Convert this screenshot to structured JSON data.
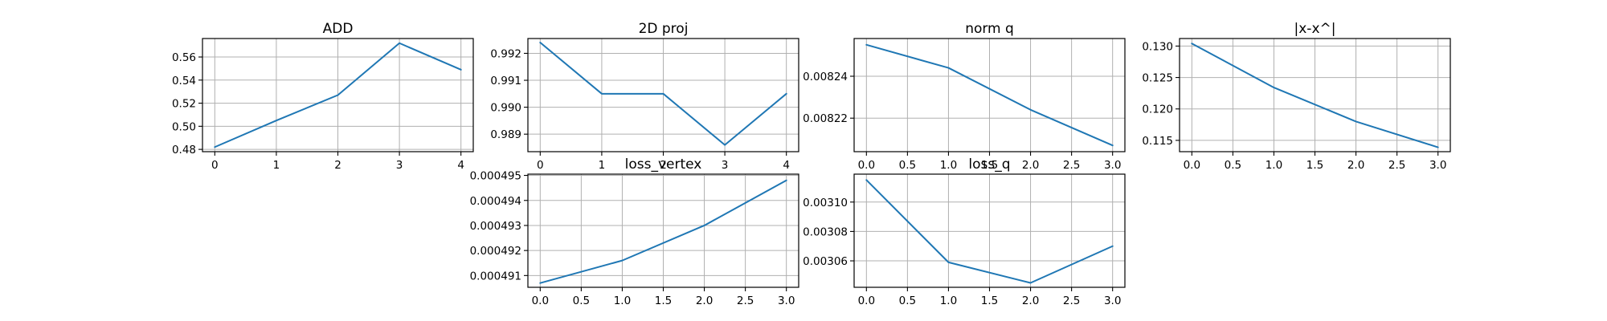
{
  "figure": {
    "line_color": "#1f77b4",
    "grid": true
  },
  "chart_data": [
    {
      "type": "line",
      "title": "ADD",
      "x": [
        0,
        1,
        2,
        3,
        4
      ],
      "y": [
        0.482,
        0.505,
        0.527,
        0.572,
        0.549
      ],
      "xlim": [
        -0.2,
        4.2
      ],
      "ylim": [
        0.478,
        0.576
      ],
      "xticks": [
        0,
        1,
        2,
        3,
        4
      ],
      "xtick_labels": [
        "0",
        "1",
        "2",
        "3",
        "4"
      ],
      "yticks": [
        0.48,
        0.5,
        0.52,
        0.54,
        0.56
      ],
      "ytick_labels": [
        "0.48",
        "0.50",
        "0.52",
        "0.54",
        "0.56"
      ],
      "grid": true
    },
    {
      "type": "line",
      "title": "2D proj",
      "x": [
        0,
        1,
        2,
        3,
        4
      ],
      "y": [
        0.9924,
        0.9905,
        0.9905,
        0.9886,
        0.9905
      ],
      "xlim": [
        -0.2,
        4.2
      ],
      "ylim": [
        0.98835,
        0.99255
      ],
      "xticks": [
        0,
        1,
        2,
        3,
        4
      ],
      "xtick_labels": [
        "0",
        "1",
        "2",
        "3",
        "4"
      ],
      "yticks": [
        0.989,
        0.99,
        0.991,
        0.992
      ],
      "ytick_labels": [
        "0.989",
        "0.990",
        "0.991",
        "0.992"
      ],
      "grid": true
    },
    {
      "type": "line",
      "title": "norm q",
      "x": [
        0,
        1,
        2,
        3
      ],
      "y": [
        0.008255,
        0.008244,
        0.008224,
        0.008207
      ],
      "xlim": [
        -0.15,
        3.15
      ],
      "ylim": [
        0.008204,
        0.008258
      ],
      "xticks": [
        0,
        0.5,
        1,
        1.5,
        2,
        2.5,
        3
      ],
      "xtick_labels": [
        "0.0",
        "0.5",
        "1.0",
        "1.5",
        "2.0",
        "2.5",
        "3.0"
      ],
      "yticks": [
        0.00822,
        0.00824
      ],
      "ytick_labels": [
        "0.00822",
        "0.00824"
      ],
      "grid": true
    },
    {
      "type": "line",
      "title": "|x-x^|",
      "x": [
        0,
        1,
        2,
        3
      ],
      "y": [
        0.1304,
        0.1234,
        0.118,
        0.1139
      ],
      "xlim": [
        -0.15,
        3.15
      ],
      "ylim": [
        0.1132,
        0.1312
      ],
      "xticks": [
        0,
        0.5,
        1,
        1.5,
        2,
        2.5,
        3
      ],
      "xtick_labels": [
        "0.0",
        "0.5",
        "1.0",
        "1.5",
        "2.0",
        "2.5",
        "3.0"
      ],
      "yticks": [
        0.115,
        0.12,
        0.125,
        0.13
      ],
      "ytick_labels": [
        "0.115",
        "0.120",
        "0.125",
        "0.130"
      ],
      "grid": true
    },
    {
      "type": "line",
      "title": "loss_vertex",
      "x": [
        0,
        1,
        2,
        3
      ],
      "y": [
        0.0004907,
        0.0004916,
        0.000493,
        0.0004948
      ],
      "xlim": [
        -0.15,
        3.15
      ],
      "ylim": [
        0.00049053,
        0.00049505
      ],
      "xticks": [
        0,
        0.5,
        1,
        1.5,
        2,
        2.5,
        3
      ],
      "xtick_labels": [
        "0.0",
        "0.5",
        "1.0",
        "1.5",
        "2.0",
        "2.5",
        "3.0"
      ],
      "yticks": [
        0.000491,
        0.000492,
        0.000493,
        0.000494,
        0.000495
      ],
      "ytick_labels": [
        "0.000491",
        "0.000492",
        "0.000493",
        "0.000494",
        "0.000495"
      ],
      "grid": true
    },
    {
      "type": "line",
      "title": "loss_q",
      "x": [
        0,
        1,
        2,
        3
      ],
      "y": [
        0.003115,
        0.003059,
        0.003045,
        0.00307
      ],
      "xlim": [
        -0.15,
        3.15
      ],
      "ylim": [
        0.003042,
        0.003119
      ],
      "xticks": [
        0,
        0.5,
        1,
        1.5,
        2,
        2.5,
        3
      ],
      "xtick_labels": [
        "0.0",
        "0.5",
        "1.0",
        "1.5",
        "2.0",
        "2.5",
        "3.0"
      ],
      "yticks": [
        0.00306,
        0.00308,
        0.0031
      ],
      "ytick_labels": [
        "0.00306",
        "0.00308",
        "0.00310"
      ],
      "grid": true
    }
  ]
}
